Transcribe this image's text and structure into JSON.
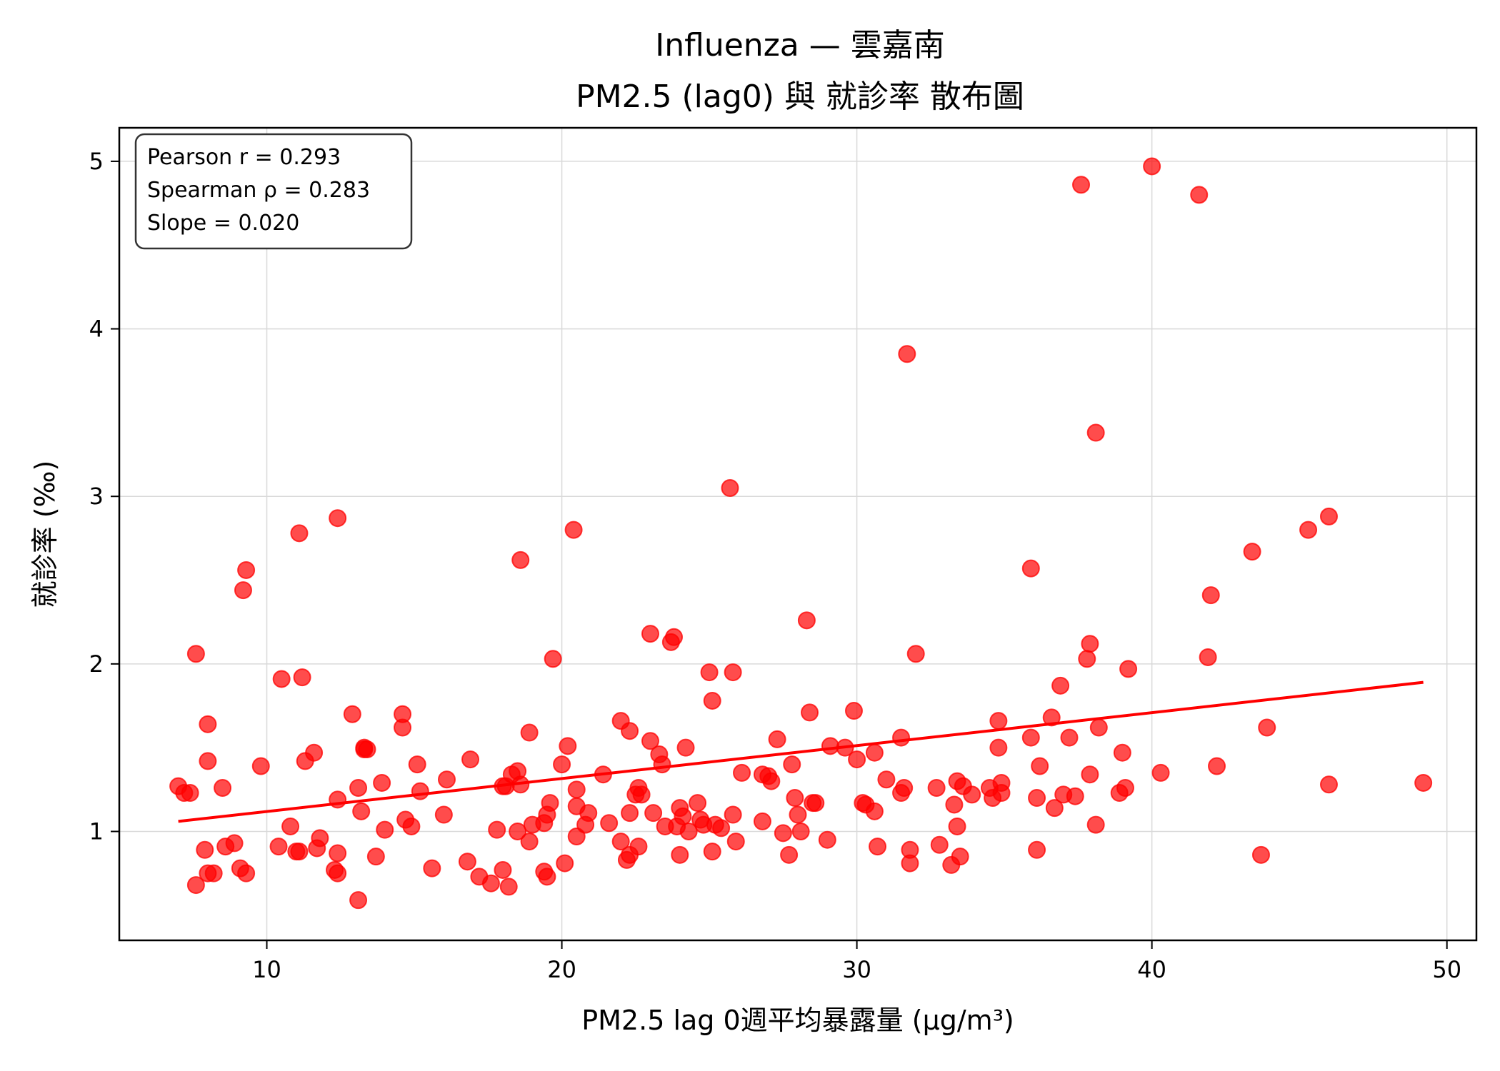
{
  "chart_data": {
    "type": "scatter",
    "title_line1": "Influenza — 雲嘉南",
    "title_line2": "PM2.5 (lag0) 與 就診率 散布圖",
    "xlabel": "PM2.5 lag 0週平均暴露量 (μg/m³)",
    "ylabel": "就診率 (‰)",
    "xlim": [
      5,
      51
    ],
    "ylim": [
      0.35,
      5.2
    ],
    "xticks": [
      10,
      20,
      30,
      40,
      50
    ],
    "yticks": [
      1,
      2,
      3,
      4,
      5
    ],
    "grid": true,
    "stats": {
      "pearson": "Pearson r = 0.293",
      "spearman": "Spearman ρ = 0.283",
      "slope": "Slope = 0.020"
    },
    "point_color": "#ff0000",
    "trend_color": "#ff0000",
    "trend_line": {
      "x": [
        7.0,
        49.2
      ],
      "y": [
        1.06,
        1.89
      ]
    },
    "points": [
      [
        7.0,
        1.27
      ],
      [
        7.2,
        1.23
      ],
      [
        7.4,
        1.23
      ],
      [
        7.6,
        2.06
      ],
      [
        7.6,
        0.68
      ],
      [
        7.9,
        0.89
      ],
      [
        8.0,
        1.64
      ],
      [
        8.0,
        1.42
      ],
      [
        8.0,
        0.75
      ],
      [
        8.2,
        0.75
      ],
      [
        8.5,
        1.26
      ],
      [
        8.6,
        0.91
      ],
      [
        8.9,
        0.93
      ],
      [
        9.1,
        0.78
      ],
      [
        9.2,
        2.44
      ],
      [
        9.3,
        0.75
      ],
      [
        9.3,
        2.56
      ],
      [
        9.8,
        1.39
      ],
      [
        10.4,
        0.91
      ],
      [
        10.5,
        1.91
      ],
      [
        10.8,
        1.03
      ],
      [
        11.0,
        0.88
      ],
      [
        11.1,
        0.88
      ],
      [
        11.1,
        2.78
      ],
      [
        11.2,
        1.92
      ],
      [
        11.3,
        1.42
      ],
      [
        11.6,
        1.47
      ],
      [
        11.7,
        0.9
      ],
      [
        11.8,
        0.96
      ],
      [
        12.3,
        0.77
      ],
      [
        12.4,
        0.75
      ],
      [
        12.4,
        1.19
      ],
      [
        12.4,
        0.87
      ],
      [
        12.4,
        2.87
      ],
      [
        12.9,
        1.7
      ],
      [
        13.1,
        0.59
      ],
      [
        13.1,
        1.26
      ],
      [
        13.2,
        1.12
      ],
      [
        13.3,
        1.49
      ],
      [
        13.3,
        1.5
      ],
      [
        13.4,
        1.49
      ],
      [
        13.7,
        0.85
      ],
      [
        13.9,
        1.29
      ],
      [
        14.0,
        1.01
      ],
      [
        14.6,
        1.7
      ],
      [
        14.6,
        1.62
      ],
      [
        14.7,
        1.07
      ],
      [
        14.9,
        1.03
      ],
      [
        15.1,
        1.4
      ],
      [
        15.2,
        1.24
      ],
      [
        15.6,
        0.78
      ],
      [
        16.0,
        1.1
      ],
      [
        16.1,
        1.31
      ],
      [
        16.8,
        0.82
      ],
      [
        16.9,
        1.43
      ],
      [
        17.2,
        0.73
      ],
      [
        17.6,
        0.69
      ],
      [
        17.8,
        1.01
      ],
      [
        18.0,
        1.27
      ],
      [
        18.0,
        0.77
      ],
      [
        18.1,
        1.27
      ],
      [
        18.2,
        0.67
      ],
      [
        18.3,
        1.34
      ],
      [
        18.5,
        1.36
      ],
      [
        18.5,
        1.0
      ],
      [
        18.6,
        2.62
      ],
      [
        18.6,
        1.28
      ],
      [
        18.9,
        1.59
      ],
      [
        18.9,
        0.94
      ],
      [
        19.0,
        1.04
      ],
      [
        19.4,
        1.05
      ],
      [
        19.4,
        0.76
      ],
      [
        19.5,
        1.1
      ],
      [
        19.5,
        0.73
      ],
      [
        19.6,
        1.17
      ],
      [
        19.7,
        2.03
      ],
      [
        20.0,
        1.4
      ],
      [
        20.1,
        0.81
      ],
      [
        20.2,
        1.51
      ],
      [
        20.4,
        2.8
      ],
      [
        20.5,
        1.25
      ],
      [
        20.5,
        1.15
      ],
      [
        20.5,
        0.97
      ],
      [
        20.8,
        1.04
      ],
      [
        20.9,
        1.11
      ],
      [
        21.4,
        1.34
      ],
      [
        21.6,
        1.05
      ],
      [
        22.0,
        0.94
      ],
      [
        22.0,
        1.66
      ],
      [
        22.2,
        0.83
      ],
      [
        22.3,
        1.6
      ],
      [
        22.3,
        0.86
      ],
      [
        22.3,
        1.11
      ],
      [
        22.5,
        1.22
      ],
      [
        22.6,
        0.91
      ],
      [
        22.6,
        1.26
      ],
      [
        22.7,
        1.22
      ],
      [
        23.0,
        1.54
      ],
      [
        23.0,
        2.18
      ],
      [
        23.1,
        1.11
      ],
      [
        23.3,
        1.46
      ],
      [
        23.4,
        1.4
      ],
      [
        23.5,
        1.03
      ],
      [
        23.7,
        2.13
      ],
      [
        23.8,
        2.16
      ],
      [
        23.9,
        1.03
      ],
      [
        24.0,
        1.14
      ],
      [
        24.0,
        0.86
      ],
      [
        24.1,
        1.09
      ],
      [
        24.2,
        1.5
      ],
      [
        24.3,
        1.0
      ],
      [
        24.6,
        1.17
      ],
      [
        24.7,
        1.07
      ],
      [
        24.8,
        1.04
      ],
      [
        25.0,
        1.95
      ],
      [
        25.1,
        1.78
      ],
      [
        25.1,
        0.88
      ],
      [
        25.2,
        1.04
      ],
      [
        25.4,
        1.02
      ],
      [
        25.7,
        3.05
      ],
      [
        25.8,
        1.1
      ],
      [
        25.8,
        1.95
      ],
      [
        25.9,
        0.94
      ],
      [
        26.1,
        1.35
      ],
      [
        26.8,
        1.06
      ],
      [
        26.8,
        1.34
      ],
      [
        27.0,
        1.33
      ],
      [
        27.1,
        1.3
      ],
      [
        27.3,
        1.55
      ],
      [
        27.5,
        0.99
      ],
      [
        27.7,
        0.86
      ],
      [
        27.8,
        1.4
      ],
      [
        27.9,
        1.2
      ],
      [
        28.0,
        1.1
      ],
      [
        28.1,
        1.0
      ],
      [
        28.3,
        2.26
      ],
      [
        28.4,
        1.71
      ],
      [
        28.5,
        1.17
      ],
      [
        28.6,
        1.17
      ],
      [
        29.0,
        0.95
      ],
      [
        29.1,
        1.51
      ],
      [
        29.6,
        1.5
      ],
      [
        29.9,
        1.72
      ],
      [
        30.0,
        1.43
      ],
      [
        30.2,
        1.17
      ],
      [
        30.3,
        1.16
      ],
      [
        30.6,
        1.47
      ],
      [
        30.6,
        1.12
      ],
      [
        30.7,
        0.91
      ],
      [
        31.0,
        1.31
      ],
      [
        31.5,
        1.23
      ],
      [
        31.5,
        1.56
      ],
      [
        31.6,
        1.26
      ],
      [
        31.7,
        3.85
      ],
      [
        31.8,
        0.89
      ],
      [
        31.8,
        0.81
      ],
      [
        32.0,
        2.06
      ],
      [
        32.7,
        1.26
      ],
      [
        32.8,
        0.92
      ],
      [
        33.2,
        0.8
      ],
      [
        33.3,
        1.16
      ],
      [
        33.4,
        1.3
      ],
      [
        33.4,
        1.03
      ],
      [
        33.5,
        0.85
      ],
      [
        33.6,
        1.27
      ],
      [
        33.9,
        1.22
      ],
      [
        34.5,
        1.26
      ],
      [
        34.6,
        1.2
      ],
      [
        34.8,
        1.66
      ],
      [
        34.8,
        1.5
      ],
      [
        34.9,
        1.29
      ],
      [
        34.9,
        1.23
      ],
      [
        35.9,
        1.56
      ],
      [
        35.9,
        2.57
      ],
      [
        36.1,
        0.89
      ],
      [
        36.1,
        1.2
      ],
      [
        36.2,
        1.39
      ],
      [
        36.6,
        1.68
      ],
      [
        36.7,
        1.14
      ],
      [
        36.9,
        1.87
      ],
      [
        37.0,
        1.22
      ],
      [
        37.2,
        1.56
      ],
      [
        37.4,
        1.21
      ],
      [
        37.6,
        4.86
      ],
      [
        37.8,
        2.03
      ],
      [
        37.9,
        2.12
      ],
      [
        37.9,
        1.34
      ],
      [
        38.1,
        3.38
      ],
      [
        38.1,
        1.04
      ],
      [
        38.2,
        1.62
      ],
      [
        38.9,
        1.23
      ],
      [
        39.0,
        1.47
      ],
      [
        39.1,
        1.26
      ],
      [
        39.2,
        1.97
      ],
      [
        40.0,
        4.97
      ],
      [
        40.3,
        1.35
      ],
      [
        41.6,
        4.8
      ],
      [
        41.9,
        2.04
      ],
      [
        42.0,
        2.41
      ],
      [
        42.2,
        1.39
      ],
      [
        43.4,
        2.67
      ],
      [
        43.7,
        0.86
      ],
      [
        43.9,
        1.62
      ],
      [
        45.3,
        2.8
      ],
      [
        46.0,
        2.88
      ],
      [
        46.0,
        1.28
      ],
      [
        49.2,
        1.29
      ]
    ]
  }
}
